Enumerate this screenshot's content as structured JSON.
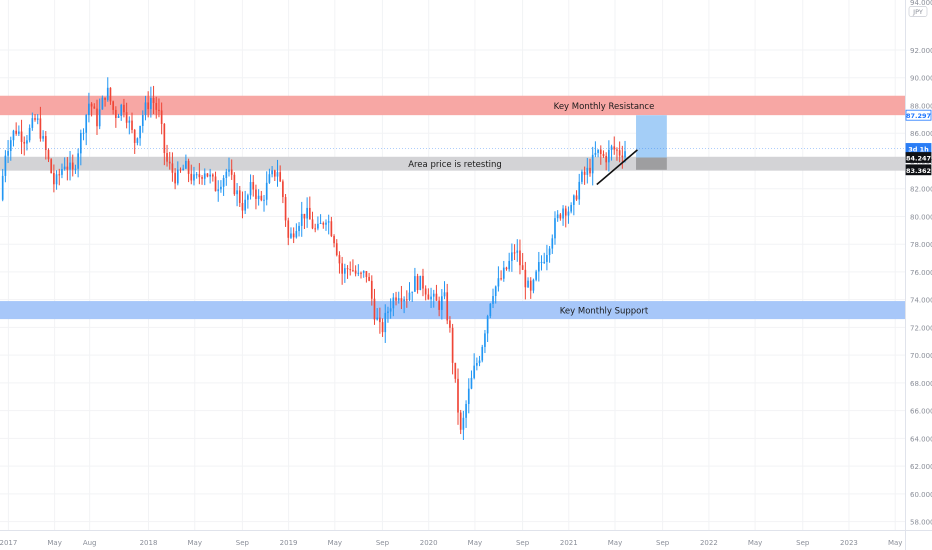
{
  "chart_data": {
    "type": "candlestick",
    "currency": "JPY",
    "ylim": [
      57.4,
      95.6
    ],
    "y_ticks": [
      58,
      60,
      62,
      64,
      66,
      68,
      70,
      72,
      74,
      76,
      78,
      80,
      82,
      84,
      86,
      88,
      90,
      92
    ],
    "y_top_label": "94.000",
    "x_ticks": [
      {
        "label": "2017",
        "t": 2017.0
      },
      {
        "label": "May",
        "t": 2017.33
      },
      {
        "label": "Aug",
        "t": 2017.58
      },
      {
        "label": "2018",
        "t": 2018.0
      },
      {
        "label": "May",
        "t": 2018.33
      },
      {
        "label": "Sep",
        "t": 2018.67
      },
      {
        "label": "2019",
        "t": 2019.0
      },
      {
        "label": "May",
        "t": 2019.33
      },
      {
        "label": "Sep",
        "t": 2019.67
      },
      {
        "label": "2020",
        "t": 2020.0
      },
      {
        "label": "May",
        "t": 2020.33
      },
      {
        "label": "Sep",
        "t": 2020.67
      },
      {
        "label": "2021",
        "t": 2021.0
      },
      {
        "label": "May",
        "t": 2021.33
      },
      {
        "label": "Sep",
        "t": 2021.67
      },
      {
        "label": "2022",
        "t": 2022.0
      },
      {
        "label": "May",
        "t": 2022.33
      },
      {
        "label": "Sep",
        "t": 2022.67
      },
      {
        "label": "2023",
        "t": 2023.0
      },
      {
        "label": "May",
        "t": 2023.33
      }
    ],
    "xlim": [
      2016.94,
      2023.4
    ],
    "price_path": [
      [
        2016.94,
        81.2
      ],
      [
        2016.98,
        84.8
      ],
      [
        2017.05,
        86.3
      ],
      [
        2017.12,
        85.6
      ],
      [
        2017.2,
        87.1
      ],
      [
        2017.28,
        84.2
      ],
      [
        2017.33,
        82.2
      ],
      [
        2017.4,
        83.9
      ],
      [
        2017.46,
        83.1
      ],
      [
        2017.52,
        85.9
      ],
      [
        2017.58,
        88.4
      ],
      [
        2017.63,
        86.8
      ],
      [
        2017.7,
        89.2
      ],
      [
        2017.76,
        87.3
      ],
      [
        2017.82,
        88.1
      ],
      [
        2017.9,
        85.4
      ],
      [
        2017.96,
        87.4
      ],
      [
        2018.02,
        88.6
      ],
      [
        2018.08,
        87.2
      ],
      [
        2018.12,
        84.1
      ],
      [
        2018.2,
        82.7
      ],
      [
        2018.26,
        83.6
      ],
      [
        2018.33,
        82.5
      ],
      [
        2018.4,
        83.4
      ],
      [
        2018.48,
        82.1
      ],
      [
        2018.56,
        83.3
      ],
      [
        2018.62,
        81.9
      ],
      [
        2018.68,
        80.6
      ],
      [
        2018.74,
        82.3
      ],
      [
        2018.8,
        80.9
      ],
      [
        2018.86,
        82.6
      ],
      [
        2018.92,
        83.4
      ],
      [
        2018.96,
        81.4
      ],
      [
        2019.0,
        78.2
      ],
      [
        2019.06,
        79.6
      ],
      [
        2019.12,
        80.3
      ],
      [
        2019.2,
        78.8
      ],
      [
        2019.27,
        80.1
      ],
      [
        2019.33,
        78.3
      ],
      [
        2019.38,
        75.9
      ],
      [
        2019.44,
        76.4
      ],
      [
        2019.5,
        75.6
      ],
      [
        2019.56,
        75.9
      ],
      [
        2019.61,
        73.2
      ],
      [
        2019.66,
        71.6
      ],
      [
        2019.72,
        73.6
      ],
      [
        2019.78,
        74.6
      ],
      [
        2019.84,
        74.2
      ],
      [
        2019.9,
        75.3
      ],
      [
        2019.96,
        75.1
      ],
      [
        2020.02,
        74.1
      ],
      [
        2020.07,
        73.6
      ],
      [
        2020.11,
        74.2
      ],
      [
        2020.15,
        71.8
      ],
      [
        2020.19,
        67.8
      ],
      [
        2020.23,
        64.2
      ],
      [
        2020.27,
        66.6
      ],
      [
        2020.32,
        68.8
      ],
      [
        2020.37,
        70.2
      ],
      [
        2020.41,
        72.4
      ],
      [
        2020.45,
        74.6
      ],
      [
        2020.5,
        75.2
      ],
      [
        2020.56,
        76.3
      ],
      [
        2020.62,
        77.7
      ],
      [
        2020.68,
        75.6
      ],
      [
        2020.73,
        74.3
      ],
      [
        2020.78,
        76.2
      ],
      [
        2020.84,
        77.5
      ],
      [
        2020.9,
        79.4
      ],
      [
        2020.96,
        80.7
      ],
      [
        2021.02,
        80.4
      ],
      [
        2021.08,
        82.6
      ],
      [
        2021.14,
        83.3
      ],
      [
        2021.2,
        84.6
      ],
      [
        2021.26,
        84.2
      ],
      [
        2021.31,
        84.9
      ],
      [
        2021.36,
        84.6
      ],
      [
        2021.42,
        84.9
      ]
    ],
    "zones": [
      {
        "label": "Key Monthly Resistance",
        "y_low": 87.3,
        "y_high": 88.7,
        "color": "#f7a7a4",
        "text_color": "#1a1a1a"
      },
      {
        "label": "Area price is retesting",
        "y_low": 83.3,
        "y_high": 84.3,
        "color": "#d3d3d6",
        "text_color": "#1a1a1a"
      },
      {
        "label": "Key Monthly Support",
        "y_low": 72.6,
        "y_high": 73.9,
        "color": "#a7c7f9",
        "text_color": "#1a1a1a"
      }
    ],
    "trendline": {
      "x1": 2021.2,
      "y1": 82.3,
      "x2": 2021.49,
      "y2": 84.8
    },
    "position_box": {
      "x1": 2021.48,
      "x2": 2021.7,
      "entry": 84.247,
      "target": 87.297,
      "stop": 83.362,
      "target_color": "#9fcbf7",
      "stop_color": "#9b9b9d"
    },
    "price_labels": [
      {
        "text": "87.297",
        "y": 87.297,
        "bg": "#ffffff",
        "fg": "#1f77ff",
        "border": "#1f77ff"
      },
      {
        "text": "3d 1h",
        "y": 84.9,
        "bg": "#2a7df5",
        "fg": "#ffffff",
        "border": "#2a7df5"
      },
      {
        "text": "84.247",
        "y": 84.247,
        "bg": "#0f1115",
        "fg": "#ffffff",
        "border": "#0f1115"
      },
      {
        "text": "83.362",
        "y": 83.362,
        "bg": "#0f1115",
        "fg": "#ffffff",
        "border": "#0f1115"
      }
    ],
    "colors": {
      "up": "#2196f3",
      "down": "#ef4536",
      "grid": "#f2f3f5",
      "axis_text": "#8a8e98",
      "axis_line": "#e0e3eb"
    }
  }
}
